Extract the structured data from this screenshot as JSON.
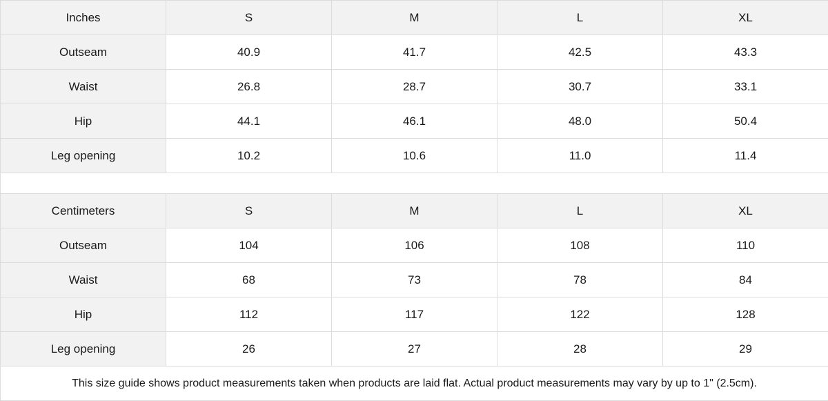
{
  "sections": [
    {
      "unit": "Inches",
      "sizes": [
        "S",
        "M",
        "L",
        "XL"
      ],
      "rows": [
        {
          "label": "Outseam",
          "values": [
            "40.9",
            "41.7",
            "42.5",
            "43.3"
          ]
        },
        {
          "label": "Waist",
          "values": [
            "26.8",
            "28.7",
            "30.7",
            "33.1"
          ]
        },
        {
          "label": "Hip",
          "values": [
            "44.1",
            "46.1",
            "48.0",
            "50.4"
          ]
        },
        {
          "label": "Leg opening",
          "values": [
            "10.2",
            "10.6",
            "11.0",
            "11.4"
          ]
        }
      ]
    },
    {
      "unit": "Centimeters",
      "sizes": [
        "S",
        "M",
        "L",
        "XL"
      ],
      "rows": [
        {
          "label": "Outseam",
          "values": [
            "104",
            "106",
            "108",
            "110"
          ]
        },
        {
          "label": "Waist",
          "values": [
            "68",
            "73",
            "78",
            "84"
          ]
        },
        {
          "label": "Hip",
          "values": [
            "112",
            "117",
            "122",
            "128"
          ]
        },
        {
          "label": "Leg opening",
          "values": [
            "26",
            "27",
            "28",
            "29"
          ]
        }
      ]
    }
  ],
  "footnote": "This size guide shows product measurements taken when products are laid flat.  Actual product measurements may vary by up to 1\" (2.5cm).",
  "colors": {
    "header_bg": "#f2f2f2",
    "border": "#dcdcdc"
  }
}
